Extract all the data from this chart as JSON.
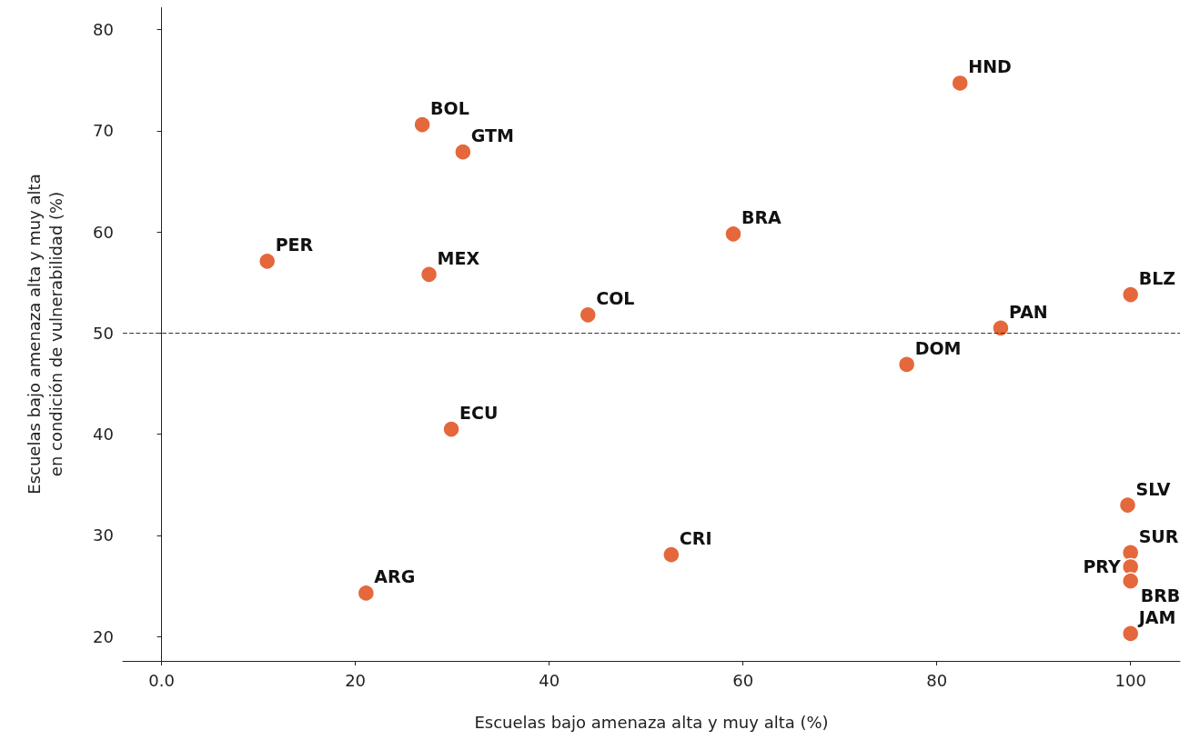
{
  "chart_data": {
    "type": "scatter",
    "xlabel": "Escuelas bajo amenaza alta y muy alta (%)",
    "ylabel": "Escuelas bajo amenaza alta y muy alta\nen condición de vulnerabilidad (%)",
    "series": [
      {
        "color": "#e4683c",
        "x": [
          82.4,
          26.9,
          31.1,
          59.0,
          10.9,
          27.6,
          100,
          44.0,
          86.6,
          76.9,
          29.9,
          99.7,
          100,
          100,
          100,
          52.6,
          21.1,
          100
        ],
        "values": [
          74.7,
          70.6,
          67.9,
          59.8,
          57.1,
          55.8,
          53.8,
          51.8,
          50.5,
          46.9,
          40.5,
          33.0,
          28.3,
          26.9,
          25.5,
          28.1,
          24.3,
          20.3
        ]
      }
    ],
    "annotations": [
      {
        "text": "HND",
        "x": 82.4,
        "y": 74.7
      },
      {
        "text": "BOL",
        "x": 26.9,
        "y": 70.6
      },
      {
        "text": "GTM",
        "x": 31.1,
        "y": 67.9
      },
      {
        "text": "BRA",
        "x": 59.0,
        "y": 59.8
      },
      {
        "text": "PER",
        "x": 10.9,
        "y": 57.1
      },
      {
        "text": "MEX",
        "x": 27.6,
        "y": 55.8
      },
      {
        "text": "BLZ",
        "x": 100,
        "y": 53.8
      },
      {
        "text": "COL",
        "x": 44.0,
        "y": 51.8
      },
      {
        "text": "PAN",
        "x": 86.6,
        "y": 50.5
      },
      {
        "text": "DOM",
        "x": 76.9,
        "y": 46.9
      },
      {
        "text": "ECU",
        "x": 29.9,
        "y": 40.5
      },
      {
        "text": "SLV",
        "x": 99.7,
        "y": 33.0
      },
      {
        "text": "SUR",
        "x": 100,
        "y": 28.3
      },
      {
        "text": "PRY",
        "x": 100,
        "y": 26.9
      },
      {
        "text": "BRB",
        "x": 100,
        "y": 25.5
      },
      {
        "text": "CRI",
        "x": 52.6,
        "y": 28.1
      },
      {
        "text": "ARG",
        "x": 21.1,
        "y": 24.3
      },
      {
        "text": "JAM",
        "x": 100,
        "y": 20.3
      }
    ],
    "xlim": [
      -4,
      105.1
    ],
    "xticks": [
      {
        "value": 0,
        "label": "0.0"
      },
      20,
      40,
      60,
      80,
      100
    ],
    "ylim": [
      17.6,
      82.2
    ],
    "yticks": [
      20,
      30,
      40,
      50,
      60,
      70,
      80
    ],
    "ref_lines": [
      {
        "axis": "y",
        "value": 50,
        "color": "#333333",
        "line_style": "dashed"
      }
    ],
    "grid": false,
    "marker": "circle"
  }
}
